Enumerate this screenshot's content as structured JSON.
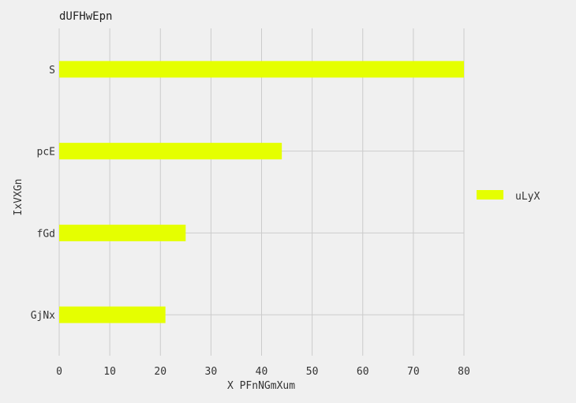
{
  "chart_data": {
    "type": "bar",
    "orientation": "horizontal",
    "title": "dUFHwEpn",
    "xlabel": "X PFnNGmXum",
    "ylabel": "IxVXGn",
    "categories": [
      "GjNx",
      "fGd",
      "pcE",
      "S"
    ],
    "series": [
      {
        "name": "uLyX",
        "values": [
          21,
          25,
          44,
          80
        ],
        "color": "#e5ff00"
      }
    ],
    "xlim": [
      0,
      80
    ],
    "xticks": [
      0,
      10,
      20,
      30,
      40,
      50,
      60,
      70,
      80
    ],
    "grid": true,
    "legend_position": "right",
    "background": "#f0f0f0",
    "grid_color": "#cbcbcb"
  }
}
